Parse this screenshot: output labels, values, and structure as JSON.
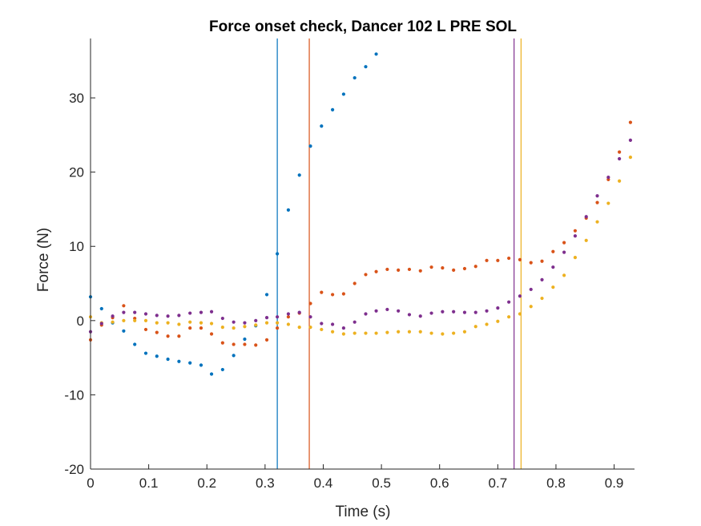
{
  "chart_data": {
    "type": "scatter",
    "title": "Force onset check, Dancer 102 L PRE SOL",
    "xlabel": "Time (s)",
    "ylabel": "Force (N)",
    "xlim": [
      0,
      0.935
    ],
    "ylim": [
      -20,
      38
    ],
    "x_ticks": [
      0,
      0.1,
      0.2,
      0.3,
      0.4,
      0.5,
      0.6,
      0.7,
      0.8,
      0.9
    ],
    "x_tick_labels": [
      "0",
      "0.1",
      "0.2",
      "0.3",
      "0.4",
      "0.5",
      "0.6",
      "0.7",
      "0.8",
      "0.9"
    ],
    "y_ticks": [
      -20,
      -10,
      0,
      10,
      20,
      30
    ],
    "y_tick_labels": [
      "-20",
      "-10",
      "0",
      "10",
      "20",
      "30"
    ],
    "grid": false,
    "series": [
      {
        "color": "#0072BD",
        "x": [
          0.0,
          0.019,
          0.038,
          0.057,
          0.076,
          0.095,
          0.114,
          0.133,
          0.152,
          0.171,
          0.19,
          0.208,
          0.227,
          0.246,
          0.265,
          0.284,
          0.303,
          0.321,
          0.34,
          0.359,
          0.378,
          0.397,
          0.416,
          0.435,
          0.454,
          0.473,
          0.491
        ],
        "y": [
          3.2,
          1.6,
          -0.3,
          -1.4,
          -3.2,
          -4.4,
          -4.8,
          -5.2,
          -5.5,
          -5.7,
          -6.0,
          -7.2,
          -6.6,
          -4.7,
          -2.5,
          -0.7,
          3.5,
          9.0,
          14.9,
          19.6,
          23.5,
          26.2,
          28.4,
          30.5,
          32.7,
          34.2,
          35.9
        ]
      },
      {
        "color": "#D95319",
        "x": [
          0.0,
          0.019,
          0.038,
          0.057,
          0.076,
          0.095,
          0.114,
          0.133,
          0.152,
          0.171,
          0.19,
          0.208,
          0.227,
          0.246,
          0.265,
          0.284,
          0.303,
          0.321,
          0.34,
          0.359,
          0.378,
          0.397,
          0.416,
          0.435,
          0.454,
          0.473,
          0.491,
          0.51,
          0.529,
          0.548,
          0.567,
          0.586,
          0.605,
          0.624,
          0.643,
          0.662,
          0.681,
          0.7,
          0.719,
          0.738,
          0.757,
          0.776,
          0.795,
          0.814,
          0.833,
          0.852,
          0.871,
          0.89,
          0.909,
          0.928
        ],
        "y": [
          -2.6,
          -0.6,
          0.4,
          2.0,
          0.3,
          -1.2,
          -1.6,
          -2.1,
          -2.1,
          -1.0,
          -1.0,
          -1.8,
          -3.0,
          -3.2,
          -3.2,
          -3.3,
          -2.6,
          -1.0,
          0.5,
          1.0,
          2.3,
          3.8,
          3.5,
          3.6,
          5.0,
          6.2,
          6.6,
          6.9,
          6.8,
          6.9,
          6.7,
          7.2,
          7.1,
          6.8,
          7.0,
          7.3,
          8.1,
          8.1,
          8.4,
          8.2,
          7.8,
          8.0,
          9.3,
          10.5,
          12.1,
          13.8,
          15.9,
          19.0,
          22.7,
          26.7
        ]
      },
      {
        "color": "#EDB120",
        "x": [
          0.0,
          0.019,
          0.038,
          0.057,
          0.076,
          0.095,
          0.114,
          0.133,
          0.152,
          0.171,
          0.19,
          0.208,
          0.227,
          0.246,
          0.265,
          0.284,
          0.303,
          0.321,
          0.34,
          0.359,
          0.378,
          0.397,
          0.416,
          0.435,
          0.454,
          0.473,
          0.491,
          0.51,
          0.529,
          0.548,
          0.567,
          0.586,
          0.605,
          0.624,
          0.643,
          0.662,
          0.681,
          0.7,
          0.719,
          0.738,
          0.757,
          0.776,
          0.795,
          0.814,
          0.833,
          0.852,
          0.871,
          0.89,
          0.909,
          0.928
        ],
        "y": [
          0.5,
          -0.3,
          -0.2,
          0.0,
          0.0,
          0.0,
          -0.3,
          -0.3,
          -0.5,
          -0.2,
          -0.3,
          -0.4,
          -0.9,
          -1.0,
          -0.8,
          -0.6,
          -0.3,
          -0.3,
          -0.5,
          -0.9,
          -0.9,
          -1.2,
          -1.5,
          -1.8,
          -1.7,
          -1.7,
          -1.7,
          -1.6,
          -1.5,
          -1.5,
          -1.5,
          -1.7,
          -1.8,
          -1.7,
          -1.5,
          -0.8,
          -0.5,
          -0.1,
          0.5,
          0.9,
          1.9,
          3.0,
          4.5,
          6.1,
          8.5,
          10.8,
          13.3,
          15.8,
          18.8,
          22.0
        ]
      },
      {
        "color": "#7E2F8E",
        "x": [
          0.0,
          0.019,
          0.038,
          0.057,
          0.076,
          0.095,
          0.114,
          0.133,
          0.152,
          0.171,
          0.19,
          0.208,
          0.227,
          0.246,
          0.265,
          0.284,
          0.303,
          0.321,
          0.34,
          0.359,
          0.378,
          0.397,
          0.416,
          0.435,
          0.454,
          0.473,
          0.491,
          0.51,
          0.529,
          0.548,
          0.567,
          0.586,
          0.605,
          0.624,
          0.643,
          0.662,
          0.681,
          0.7,
          0.719,
          0.738,
          0.757,
          0.776,
          0.795,
          0.814,
          0.833,
          0.852,
          0.871,
          0.89,
          0.909,
          0.928
        ],
        "y": [
          -1.5,
          -0.4,
          0.6,
          1.1,
          1.1,
          0.9,
          0.7,
          0.6,
          0.7,
          1.0,
          1.1,
          1.2,
          0.3,
          -0.2,
          -0.3,
          0.0,
          0.4,
          0.5,
          0.9,
          1.1,
          0.5,
          -0.4,
          -0.5,
          -1.0,
          -0.2,
          0.9,
          1.3,
          1.5,
          1.3,
          0.8,
          0.6,
          1.0,
          1.2,
          1.2,
          1.1,
          1.1,
          1.3,
          1.7,
          2.5,
          3.3,
          4.2,
          5.5,
          7.2,
          9.2,
          11.4,
          14.0,
          16.8,
          19.3,
          21.8,
          24.3
        ]
      }
    ],
    "onset_lines": [
      {
        "color": "#0072BD",
        "x": 0.321
      },
      {
        "color": "#D95319",
        "x": 0.376
      },
      {
        "color": "#7E2F8E",
        "x": 0.728
      },
      {
        "color": "#EDB120",
        "x": 0.74
      }
    ]
  }
}
